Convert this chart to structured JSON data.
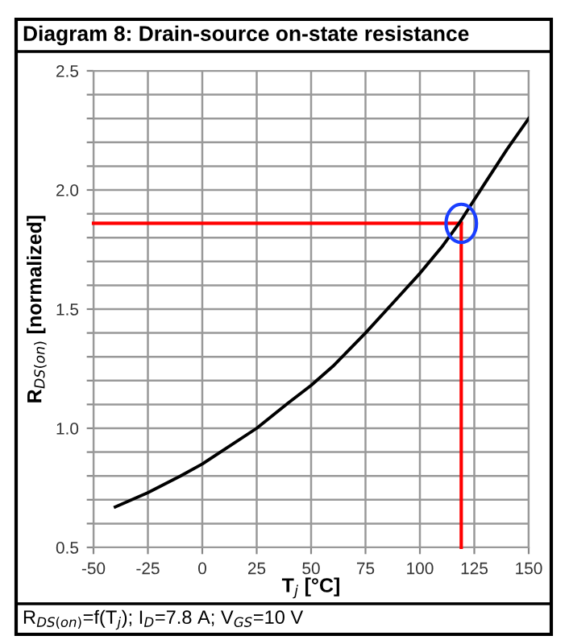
{
  "chart_data": {
    "type": "line",
    "title": "Diagram 8: Drain-source on-state resistance",
    "xlabel": "T$_{j}$ [°C]",
    "ylabel": "R$_{DS(on)}$ [normalized]",
    "annotations": [
      "R$_{DS(on)}$=f(T$_{j}$); I$_{D}$=7.8 A; V$_{GS}$=10 V"
    ],
    "series": [
      {
        "color": "#000000",
        "x": [
          -40,
          -25,
          -10,
          0,
          10,
          25,
          40,
          50,
          60,
          75,
          90,
          100,
          110,
          118,
          130,
          140,
          150
        ],
        "values": [
          0.67,
          0.73,
          0.8,
          0.85,
          0.91,
          1.0,
          1.11,
          1.18,
          1.26,
          1.4,
          1.55,
          1.65,
          1.76,
          1.86,
          2.03,
          2.17,
          2.3
        ]
      }
    ],
    "xlim": [
      -50,
      150
    ],
    "xticks": [
      -50,
      -25,
      0,
      25,
      50,
      75,
      100,
      125,
      150
    ],
    "ylim": [
      0.5,
      2.5
    ],
    "yticks": [
      0.5,
      {
        "value": 0.6,
        "label": null
      },
      {
        "value": 0.7,
        "label": null
      },
      {
        "value": 0.8,
        "label": null
      },
      {
        "value": 0.9,
        "label": null
      },
      {
        "value": 1.0,
        "label": "1.0"
      },
      {
        "value": 1.1,
        "label": null
      },
      {
        "value": 1.2,
        "label": null
      },
      {
        "value": 1.3,
        "label": null
      },
      {
        "value": 1.4,
        "label": null
      },
      1.5,
      {
        "value": 1.6,
        "label": null
      },
      {
        "value": 1.7,
        "label": null
      },
      {
        "value": 1.8,
        "label": null
      },
      {
        "value": 1.9,
        "label": null
      },
      {
        "value": 2.0,
        "label": "2.0"
      },
      {
        "value": 2.1,
        "label": null
      },
      {
        "value": 2.2,
        "label": null
      },
      {
        "value": 2.3,
        "label": null
      },
      {
        "value": 2.4,
        "label": null
      },
      2.5
    ],
    "ref_lines": [
      {
        "axis": "x",
        "value": 119,
        "color": "#ff0000"
      },
      {
        "axis": "y",
        "value": 1.86,
        "color": "#ff0000"
      }
    ],
    "grid": true,
    "marker": "none",
    "line_style": "solid"
  }
}
